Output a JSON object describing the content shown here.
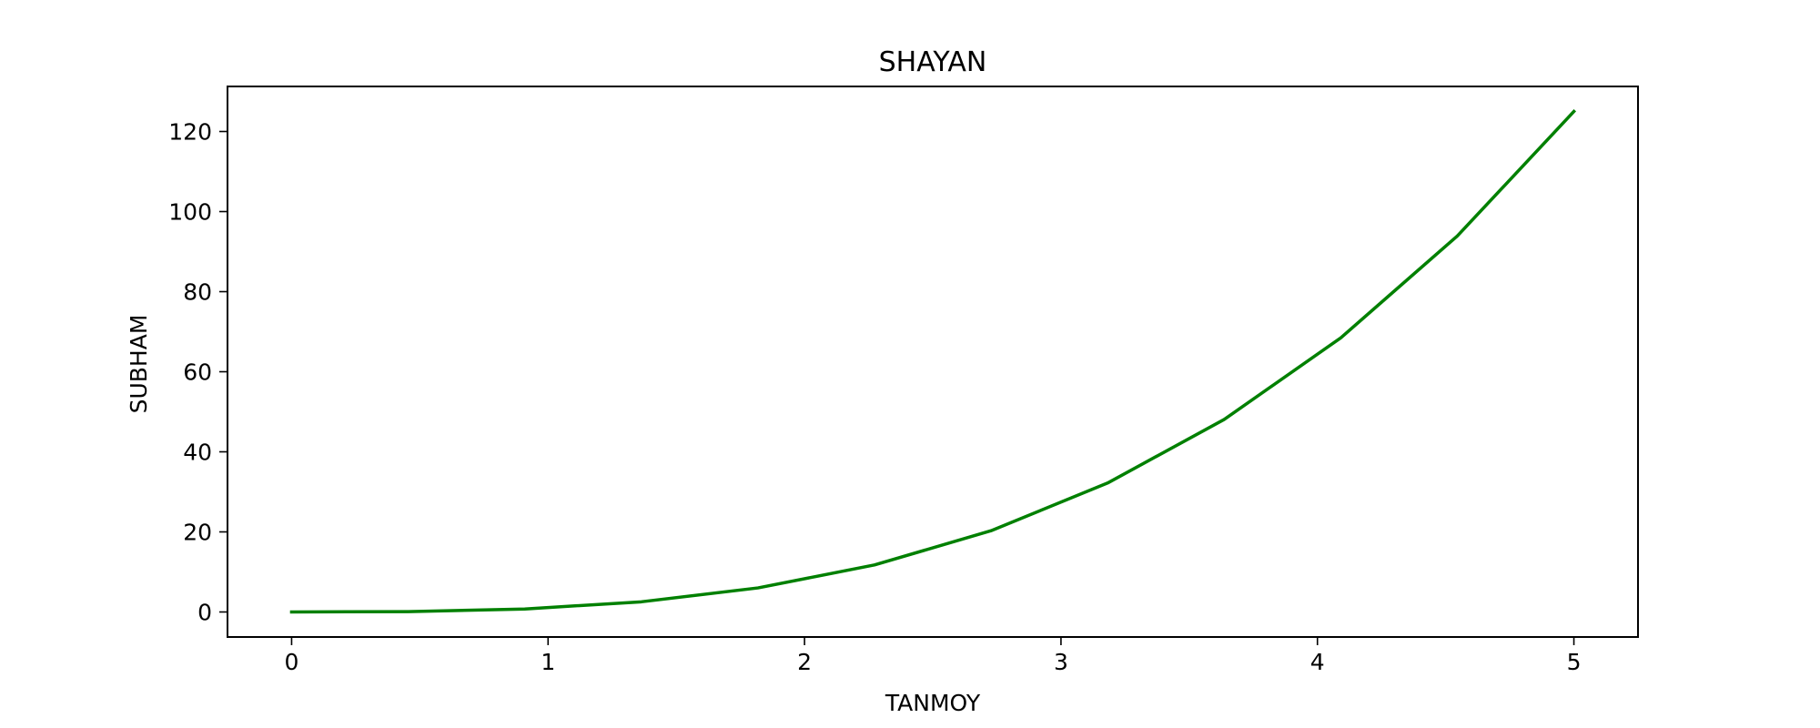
{
  "chart_data": {
    "type": "line",
    "title": "SHAYAN",
    "xlabel": "TANMOY",
    "ylabel": "SUBHAM",
    "xlim": [
      -0.25,
      5.25
    ],
    "ylim": [
      -6.25,
      131.25
    ],
    "xticks": [
      0,
      1,
      2,
      3,
      4,
      5
    ],
    "yticks": [
      0,
      20,
      40,
      60,
      80,
      100,
      120
    ],
    "grid": false,
    "series": [
      {
        "color": "#008000",
        "x": [
          0,
          0.4545,
          0.9091,
          1.3636,
          1.8182,
          2.2727,
          2.7273,
          3.1818,
          3.6364,
          4.0909,
          4.5455,
          5
        ],
        "y": [
          0,
          0.09,
          0.75,
          2.54,
          6.01,
          11.74,
          20.29,
          32.21,
          48.08,
          68.46,
          93.91,
          125
        ]
      }
    ]
  }
}
